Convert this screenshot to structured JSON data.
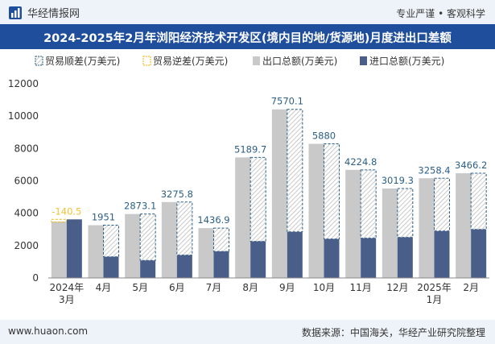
{
  "header": {
    "brand": "华经情报网",
    "tagline": "专业严谨 • 客观科学"
  },
  "title": "2024-2025年2月年浏阳经济技术开发区(境内目的地/货源地)月度进出口差额",
  "footer": {
    "website": "www.huaon.com",
    "source": "数据来源：中国海关，华经产业研究院整理"
  },
  "colors": {
    "export": "#c9c9c9",
    "import": "#4a5e8a",
    "surplus": "#2b5f86",
    "deficit": "#f2c232",
    "title_bg": "#1f4e9c"
  },
  "chart_data": {
    "type": "bar",
    "categories": [
      "2024年3月",
      "4月",
      "5月",
      "6月",
      "7月",
      "8月",
      "9月",
      "10月",
      "11月",
      "12月",
      "2025年1月",
      "2月"
    ],
    "series": [
      {
        "name": "出口总额(万美元)",
        "values": [
          3480,
          3260,
          3950,
          4690,
          3080,
          7450,
          10420,
          8290,
          6680,
          5530,
          6160,
          6470
        ]
      },
      {
        "name": "进口总额(万美元)",
        "values": [
          3620,
          1310,
          1080,
          1410,
          1640,
          2260,
          2850,
          2410,
          2460,
          2510,
          2900,
          3000
        ]
      }
    ],
    "balance": {
      "surplus_name": "贸易顺差(万美元)",
      "deficit_name": "贸易逆差(万美元)",
      "values": [
        -140.5,
        1951,
        2873.1,
        3275.8,
        1436.9,
        5189.7,
        7570.1,
        5880,
        4224.8,
        3019.3,
        3258.4,
        3466.2
      ],
      "labels": [
        "-140.5",
        "1951",
        "2873.1",
        "3275.8",
        "1436.9",
        "5189.7",
        "7570.1",
        "5880",
        "4224.8",
        "3019.3",
        "3258.4",
        "3466.2"
      ]
    },
    "ylim": [
      0,
      12000
    ],
    "yticks": [
      "0",
      "2000",
      "4000",
      "6000",
      "8000",
      "10000",
      "12000"
    ],
    "legend_position": "top",
    "grid": false
  }
}
